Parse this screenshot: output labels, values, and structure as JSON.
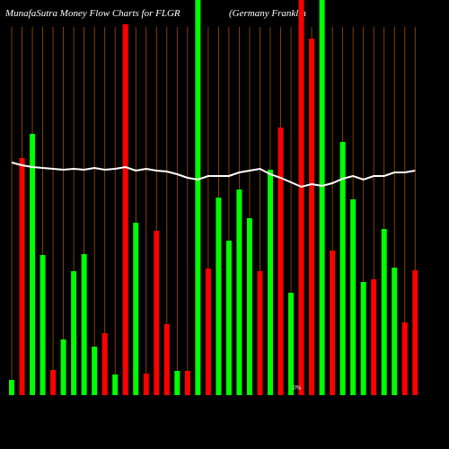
{
  "chart_data": {
    "type": "bar",
    "title": "MunafaSutra  Money Flow  Charts for FLGR",
    "subtitle": "(Germany Franklin",
    "annotation": "0%",
    "values": [
      17,
      264,
      291,
      156,
      28,
      62,
      138,
      157,
      54,
      69,
      23,
      413,
      192,
      24,
      183,
      79,
      27,
      27,
      440,
      141,
      220,
      172,
      229,
      197,
      138,
      251,
      298,
      114,
      440,
      397,
      440,
      161,
      282,
      218,
      126,
      129,
      185,
      142,
      81,
      139
    ],
    "colors": [
      "#00ff00",
      "#ff0000",
      "#00ff00",
      "#00ff00",
      "#ff0000",
      "#00ff00",
      "#00ff00",
      "#00ff00",
      "#00ff00",
      "#ff0000",
      "#00ff00",
      "#ff0000",
      "#00ff00",
      "#ff0000",
      "#ff0000",
      "#ff0000",
      "#00ff00",
      "#ff0000",
      "#00ff00",
      "#ff0000",
      "#00ff00",
      "#00ff00",
      "#00ff00",
      "#00ff00",
      "#ff0000",
      "#00ff00",
      "#ff0000",
      "#00ff00",
      "#ff0000",
      "#ff0000",
      "#00ff00",
      "#ff0000",
      "#00ff00",
      "#00ff00",
      "#00ff00",
      "#ff0000",
      "#00ff00",
      "#00ff00",
      "#ff0000",
      "#ff0000"
    ],
    "line": {
      "color": "#ffffff",
      "values": [
        259,
        256,
        254,
        253,
        252,
        251,
        252,
        251,
        253,
        251,
        252,
        254,
        250,
        252,
        250,
        249,
        246,
        242,
        240,
        244,
        244,
        244,
        248,
        250,
        252,
        246,
        242,
        237,
        232,
        235,
        233,
        236,
        241,
        244,
        240,
        244,
        244,
        248,
        248,
        250
      ]
    },
    "ylim": [
      0,
      440
    ],
    "grid_color": "#a0500a"
  }
}
